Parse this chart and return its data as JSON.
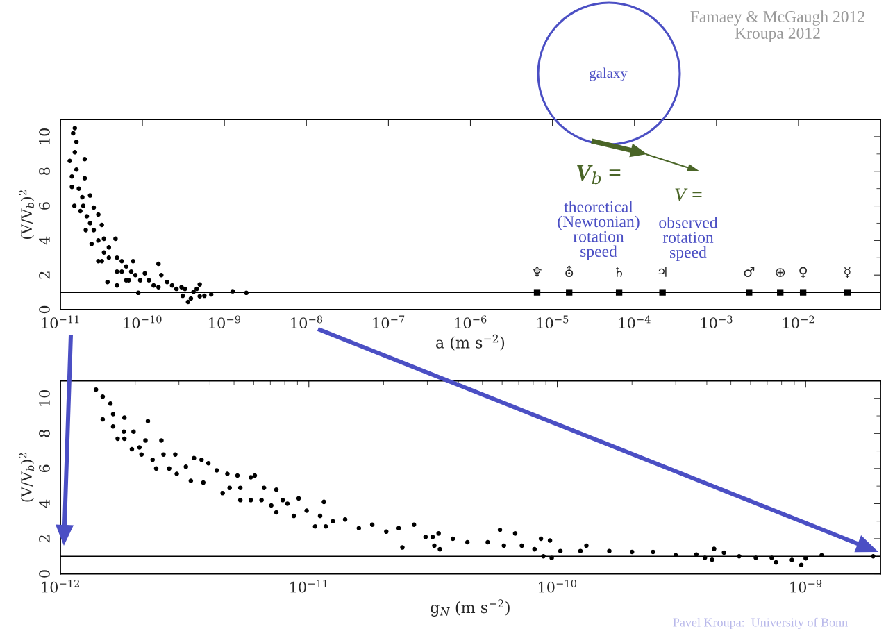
{
  "chart_data": [
    {
      "type": "scatter",
      "xlabel": "a (m s$^{−2}$)",
      "ylabel": "(V/V$_{b}$)$^{2}$",
      "log": "x",
      "grid": false,
      "legend": false,
      "marker": "circle",
      "xlim": [
        1e-11,
        0.1
      ],
      "xticks": [
        {
          "value": 1e-11,
          "label": "10$^{−11}$"
        },
        {
          "value": 1e-10,
          "label": "10$^{−10}$"
        },
        {
          "value": 1e-09,
          "label": "10$^{−9}$"
        },
        {
          "value": 1e-08,
          "label": "10$^{−8}$"
        },
        {
          "value": 1e-07,
          "label": "10$^{−7}$"
        },
        {
          "value": 1e-06,
          "label": "10$^{−6}$"
        },
        {
          "value": 1e-05,
          "label": "10$^{−5}$"
        },
        {
          "value": 0.0001,
          "label": "10$^{−4}$"
        },
        {
          "value": 0.001,
          "label": "10$^{−3}$"
        },
        {
          "value": 0.01,
          "label": "10$^{−2}$"
        }
      ],
      "ylim": [
        0,
        11
      ],
      "yticks": [
        0,
        2,
        4,
        6,
        8,
        10
      ],
      "ref_lines": [
        {
          "axis": "y",
          "value": 1,
          "color": "#000000"
        }
      ],
      "series": [
        {
          "color": "#000000",
          "x": [
            1.5e-11,
            1.43e-11,
            1.57e-11,
            1.3e-11,
            1.5e-11,
            1.98e-11,
            1.38e-11,
            1.57e-11,
            1.38e-11,
            1.48e-11,
            1.98e-11,
            1.68e-11,
            2.3e-11,
            1.9e-11,
            1.75e-11,
            2.04e-11,
            2.55e-11,
            2.9e-11,
            2.3e-11,
            3.2e-11,
            2.9e-11,
            2.4e-11,
            3.4e-11,
            4.7e-11,
            3.9e-11,
            2.9e-11,
            3.2e-11,
            3.75e-11,
            4.9e-11,
            4.9e-11,
            5.6e-11,
            6.35e-11,
            7.7e-11,
            8.2e-11,
            6.8e-11,
            8.9e-11,
            1.07e-10,
            1.2e-10,
            1.57e-10,
            1.7e-10,
            2e-10,
            1.57e-10,
            2.6e-10,
            3e-10,
            3.1e-10,
            3.6e-10,
            3.9e-10,
            4.2e-10,
            5e-10,
            4.6e-10,
            5e-10,
            5.7e-10,
            6.9e-10,
            1.26e-09,
            1.85e-09,
            3.9e-11,
            5.6e-11,
            7.3e-11,
            9.4e-11,
            4.9e-11,
            3.4e-11,
            2.55e-11,
            2.1e-11,
            1.85e-11,
            6.35e-11,
            1.37e-10,
            2.3e-10,
            3.3e-10
          ],
          "values": [
            10.5,
            10.2,
            9.7,
            8.6,
            9.1,
            8.7,
            7.7,
            8.1,
            7.1,
            6.0,
            7.6,
            7.0,
            6.6,
            6.0,
            5.7,
            4.6,
            5.9,
            5.5,
            5.0,
            4.9,
            4.0,
            3.8,
            4.1,
            4.1,
            3.6,
            2.8,
            2.8,
            1.6,
            1.4,
            3.0,
            2.8,
            2.5,
            2.8,
            2.0,
            1.7,
            0.97,
            2.1,
            1.7,
            2.65,
            2.0,
            1.6,
            1.3,
            1.2,
            1.3,
            0.8,
            0.44,
            0.64,
            1.03,
            1.46,
            1.2,
            0.77,
            0.8,
            0.88,
            1.06,
            0.97,
            3.0,
            2.2,
            2.2,
            1.7,
            2.2,
            3.3,
            4.6,
            5.4,
            6.5,
            1.7,
            1.4,
            1.4,
            1.2
          ]
        },
        {
          "color": "#000000",
          "marker": "square",
          "x": [
            6.5e-06,
            1.6e-05,
            6.5e-05,
            0.00022,
            0.0025,
            0.006,
            0.0114,
            0.0395
          ],
          "values": [
            1,
            1,
            1,
            1,
            1,
            1,
            1,
            1
          ]
        }
      ],
      "annotations": [
        {
          "text": "♆",
          "x": 6.5e-06,
          "y": 1
        },
        {
          "text": "⛢",
          "x": 1.6e-05,
          "y": 1
        },
        {
          "text": "♄",
          "x": 6.5e-05,
          "y": 1
        },
        {
          "text": "♃",
          "x": 0.00022,
          "y": 1
        },
        {
          "text": "♂",
          "x": 0.0025,
          "y": 1
        },
        {
          "text": "⊕",
          "x": 0.006,
          "y": 1
        },
        {
          "text": "♀",
          "x": 0.0114,
          "y": 1
        },
        {
          "text": "☿",
          "x": 0.0395,
          "y": 1
        },
        "Famaey & McGaugh 2012\nKroupa 2012",
        "galaxy",
        "V$_{b}$ =",
        "theoretical\n(Newtonian)\nrotation\nspeed",
        "V =",
        "observed\nrotation\nspeed"
      ]
    },
    {
      "type": "scatter",
      "xlabel": "g$_{N}$ (m s$^{−2}$)",
      "ylabel": "(V/V$_{b}$)$^{2}$",
      "log": "x",
      "grid": false,
      "legend": false,
      "marker": "circle",
      "xlim": [
        1e-12,
        2e-09
      ],
      "xticks": [
        {
          "value": 1e-12,
          "label": "10$^{−12}$"
        },
        {
          "value": 1e-11,
          "label": "10$^{−11}$"
        },
        {
          "value": 1e-10,
          "label": "10$^{−10}$"
        },
        {
          "value": 1e-09,
          "label": "10$^{−9}$"
        }
      ],
      "ylim": [
        0,
        11
      ],
      "yticks": [
        0,
        2,
        4,
        6,
        8,
        10
      ],
      "ref_lines": [
        {
          "axis": "y",
          "value": 1,
          "color": "#000000"
        }
      ],
      "series": [
        {
          "color": "#000000",
          "x": [
            1.39e-12,
            1.48e-12,
            1.59e-12,
            1.48e-12,
            1.63e-12,
            1.63e-12,
            1.81e-12,
            2.25e-12,
            1.7e-12,
            1.81e-12,
            1.8e-12,
            1.97e-12,
            1.94e-12,
            2.08e-12,
            2.2e-12,
            2.12e-12,
            2.35e-12,
            2.43e-12,
            2.55e-12,
            2.6e-12,
            2.9e-12,
            2.94e-12,
            2.74e-12,
            3.2e-12,
            3.45e-12,
            3.35e-12,
            3.7e-12,
            3.94e-12,
            3.76e-12,
            4.26e-12,
            4.5e-12,
            4.7e-12,
            4.8e-12,
            5.16e-12,
            5.3e-12,
            5.3e-12,
            5.84e-12,
            6.06e-12,
            5.84e-12,
            6.6e-12,
            6.45e-12,
            7.4e-12,
            7.06e-12,
            7.4e-12,
            7.85e-12,
            8.2e-12,
            9.1e-12,
            8.7e-12,
            9.8e-12,
            1.06e-11,
            1.15e-11,
            1.17e-11,
            1.11e-11,
            1.25e-11,
            1.4e-11,
            1.59e-11,
            1.8e-11,
            2.05e-11,
            2.38e-11,
            2.3e-11,
            2.65e-11,
            2.95e-11,
            3.2e-11,
            3.33e-11,
            3.15e-11,
            3.37e-11,
            3.8e-11,
            4.35e-11,
            5.25e-11,
            5.88e-11,
            6.77e-11,
            6.1e-11,
            7.2e-11,
            8.6e-11,
            9.35e-11,
            8.8e-11,
            9.5e-11,
            8.1e-11,
            1.03e-10,
            1.31e-10,
            1.24e-10,
            1.62e-10,
            2e-10,
            2.43e-10,
            3e-10,
            3.63e-10,
            3.93e-10,
            4.2e-10,
            4.28e-10,
            4.69e-10,
            5.4e-10,
            6.3e-10,
            7.3e-10,
            7.6e-10,
            8.8e-10,
            9.6e-10,
            1e-09,
            1.16e-09,
            1.87e-09
          ],
          "values": [
            10.5,
            10.1,
            9.7,
            8.8,
            9.1,
            8.4,
            8.9,
            8.7,
            7.7,
            7.7,
            8.1,
            8.1,
            7.1,
            7.2,
            7.6,
            6.8,
            6.5,
            6.0,
            7.6,
            6.8,
            6.8,
            5.7,
            6.0,
            6.1,
            6.6,
            5.3,
            6.5,
            6.3,
            5.2,
            5.9,
            4.6,
            5.7,
            4.9,
            5.6,
            4.2,
            4.9,
            5.5,
            5.6,
            4.2,
            4.9,
            4.2,
            4.8,
            3.9,
            3.5,
            4.2,
            4.0,
            4.3,
            3.3,
            3.6,
            2.7,
            4.1,
            2.7,
            3.3,
            3.0,
            3.1,
            2.6,
            2.8,
            2.4,
            1.5,
            2.6,
            2.8,
            2.1,
            1.6,
            2.3,
            2.1,
            1.4,
            2.0,
            1.8,
            1.8,
            2.5,
            2.3,
            1.6,
            1.6,
            2.0,
            1.9,
            1.0,
            0.9,
            1.4,
            1.3,
            1.6,
            1.3,
            1.3,
            1.25,
            1.25,
            1.06,
            1.1,
            0.91,
            0.8,
            1.42,
            1.21,
            1.0,
            0.91,
            0.91,
            0.65,
            0.79,
            0.5,
            0.88,
            1.06,
            1.0
          ]
        }
      ],
      "annotations": [
        "Pavel Kroupa:  University of Bonn"
      ]
    }
  ]
}
